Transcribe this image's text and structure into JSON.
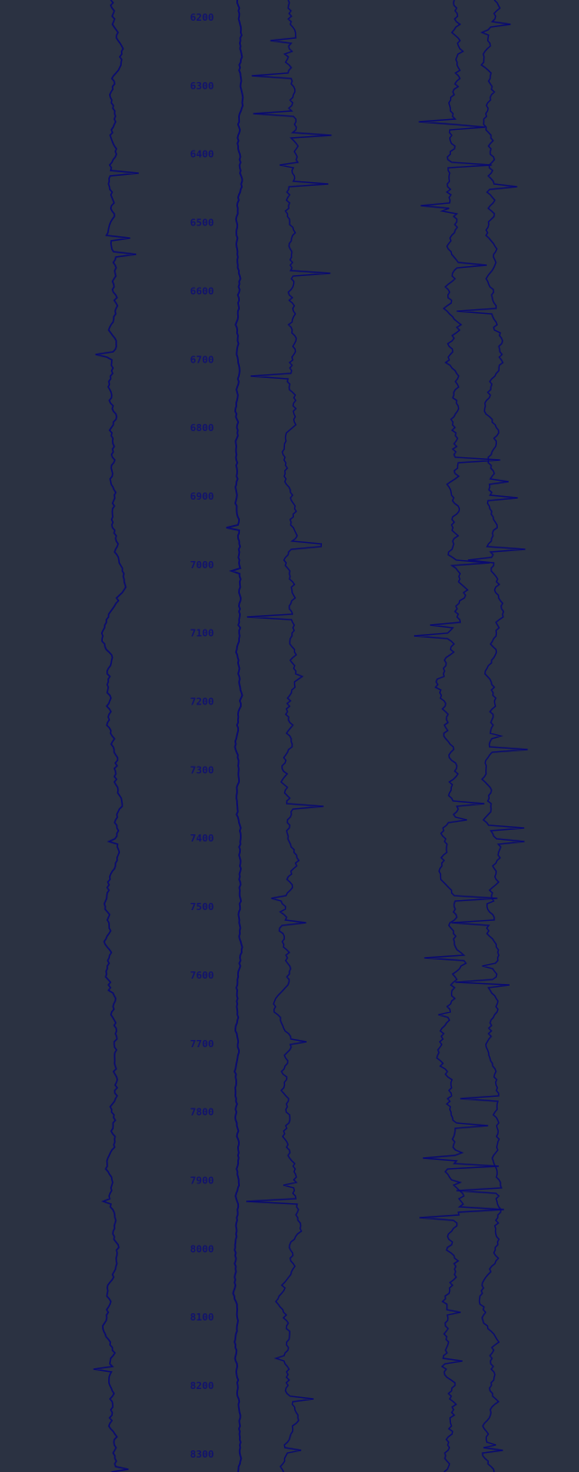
{
  "depth_track": {
    "labels": [
      "6200",
      "6300",
      "6400",
      "6500",
      "6600",
      "6700",
      "6800",
      "6900",
      "7000",
      "7100",
      "7200",
      "7300",
      "7400",
      "7500",
      "7600",
      "7700",
      "7800",
      "7900",
      "8000",
      "8100",
      "8200",
      "8300"
    ]
  }
}
